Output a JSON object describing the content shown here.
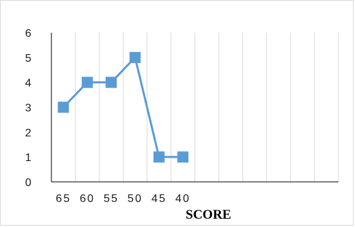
{
  "chart_data": {
    "type": "line",
    "title": "",
    "xlabel": "SCORE",
    "ylabel": "",
    "categories": [
      "65",
      "60",
      "55",
      "50",
      "45",
      "40",
      "",
      "",
      "",
      "",
      "",
      ""
    ],
    "series": [
      {
        "values": [
          3,
          4,
          4,
          5,
          1,
          1,
          null,
          null,
          null,
          null,
          null,
          null
        ],
        "color": "#5b9bd5",
        "marker": "square"
      }
    ],
    "ylim": [
      0,
      6
    ],
    "yticks": [
      0,
      1,
      2,
      3,
      4,
      5,
      6
    ],
    "grid": "vertical",
    "legend": "none"
  }
}
